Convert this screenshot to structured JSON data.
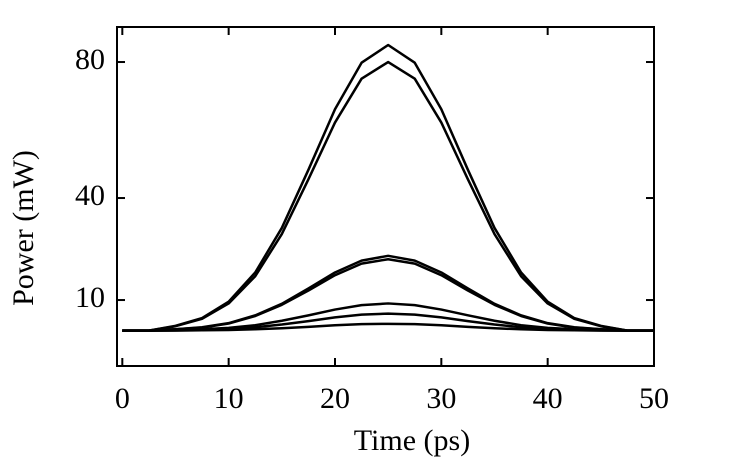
{
  "chart_data": {
    "type": "line",
    "xlabel": "Time (ps)",
    "ylabel": "Power (mW)",
    "x": [
      0,
      2.5,
      5,
      7.5,
      10,
      12.5,
      15,
      17.5,
      20,
      22.5,
      25,
      27.5,
      30,
      32.5,
      35,
      37.5,
      40,
      42.5,
      45,
      47.5,
      50
    ],
    "series": [
      {
        "color": "#000000",
        "values": [
          1.0,
          1.0,
          2.4,
          4.7,
          9.5,
          18.1,
          31.2,
          48.3,
          66.1,
          79.8,
          85,
          79.8,
          66.1,
          48.3,
          31.2,
          18.1,
          9.5,
          4.7,
          2.4,
          1.0,
          1.0
        ]
      },
      {
        "color": "#000000",
        "values": [
          1.0,
          1.0,
          2.3,
          4.5,
          9.0,
          17.0,
          29.4,
          45.5,
          62.2,
          75.1,
          80,
          75.1,
          62.2,
          45.5,
          29.4,
          17.0,
          9.0,
          4.5,
          2.3,
          1.0,
          1.0
        ]
      },
      {
        "color": "#000000",
        "values": [
          1.0,
          1.0,
          1.4,
          2.0,
          3.2,
          5.5,
          8.9,
          13.4,
          18.1,
          21.6,
          23,
          21.6,
          18.1,
          13.4,
          8.9,
          5.5,
          3.2,
          2.0,
          1.4,
          1.0,
          1.0
        ]
      },
      {
        "color": "#000000",
        "values": [
          1.0,
          1.0,
          1.4,
          1.9,
          3.1,
          5.3,
          8.6,
          12.8,
          17.3,
          20.7,
          22,
          20.7,
          17.3,
          12.8,
          8.6,
          5.3,
          3.1,
          1.9,
          1.4,
          1.0,
          1.0
        ]
      },
      {
        "color": "#000000",
        "values": [
          1.0,
          1.0,
          1.1,
          1.4,
          1.8,
          2.6,
          3.9,
          5.5,
          7.2,
          8.5,
          9,
          8.5,
          7.2,
          5.5,
          3.9,
          2.6,
          1.8,
          1.4,
          1.1,
          1.0,
          1.0
        ]
      },
      {
        "color": "#000000",
        "values": [
          1.0,
          1.0,
          1.1,
          1.2,
          1.5,
          2.0,
          2.8,
          3.8,
          4.9,
          5.7,
          6,
          5.7,
          4.9,
          3.8,
          2.8,
          2.0,
          1.5,
          1.2,
          1.1,
          1.0,
          1.0
        ]
      },
      {
        "color": "#000000",
        "values": [
          1.0,
          1.0,
          1.0,
          1.1,
          1.2,
          1.4,
          1.7,
          2.1,
          2.6,
          2.9,
          3,
          2.9,
          2.6,
          2.1,
          1.7,
          1.4,
          1.2,
          1.1,
          1.0,
          1.0,
          1.0
        ]
      }
    ],
    "xlim": [
      -0.5,
      50
    ],
    "ylim": [
      -9.4,
      90.3
    ],
    "xticks": [
      0,
      10,
      20,
      30,
      40,
      50
    ],
    "yticks": [
      10,
      40,
      80
    ]
  }
}
